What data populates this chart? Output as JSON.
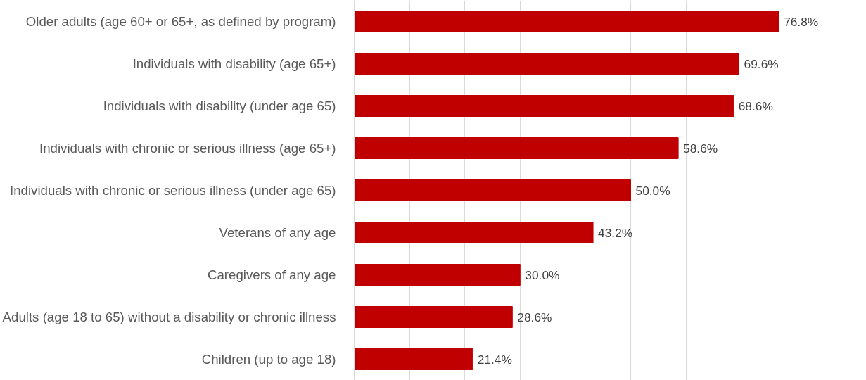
{
  "chart_data": {
    "type": "bar",
    "orientation": "horizontal",
    "categories": [
      "Older adults (age 60+ or 65+, as defined by program)",
      "Individuals with disability (age 65+)",
      "Individuals with disability (under age 65)",
      "Individuals with chronic or serious illness (age 65+)",
      "Individuals with chronic or serious illness (under age 65)",
      "Veterans of any age",
      "Caregivers of any age",
      "Adults (age 18 to 65) without a disability or chronic illness",
      "Children (up to age 18)"
    ],
    "values": [
      76.8,
      69.6,
      68.6,
      58.6,
      50.0,
      43.2,
      30.0,
      28.6,
      21.4
    ],
    "value_labels": [
      "76.8%",
      "69.6%",
      "68.6%",
      "58.6%",
      "50.0%",
      "43.2%",
      "30.0%",
      "28.6%",
      "21.4%"
    ],
    "color": "#c00000",
    "xticks": [
      {
        "value": 0,
        "label": null
      },
      {
        "value": 10,
        "label": null
      },
      {
        "value": 20,
        "label": null
      },
      {
        "value": 30,
        "label": null
      },
      {
        "value": 40,
        "label": null
      },
      {
        "value": 50,
        "label": null
      },
      {
        "value": 60,
        "label": null
      },
      {
        "value": 70,
        "label": null
      }
    ],
    "grid": "x",
    "tick_labels": "y"
  }
}
